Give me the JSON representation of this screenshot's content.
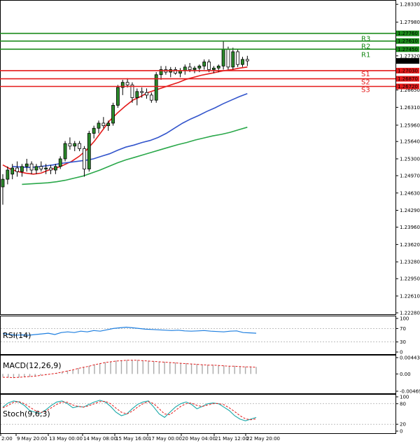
{
  "chart_data": {
    "type": "candlestick",
    "price_axis": {
      "range": [
        1.2228,
        1.2836
      ],
      "ticks": [
        "1.28330",
        "1.27980",
        "1.27320",
        "1.26650",
        "1.26310",
        "1.25960",
        "1.25640",
        "1.25300",
        "1.24970",
        "1.24630",
        "1.24290",
        "1.23960",
        "1.23620",
        "1.23280",
        "1.22950",
        "1.22610",
        "1.22280"
      ]
    },
    "time_axis": {
      "labels": [
        "2:00",
        "9 May 20:00",
        "13 May 00:00",
        "14 May 08:00",
        "15 May 16:00",
        "17 May 00:00",
        "20 May 04:00",
        "21 May 12:00",
        "22 May 20:00"
      ]
    },
    "current_price": {
      "label": "1.27220",
      "value": 1.2722
    },
    "levels": [
      {
        "name": "R3",
        "value": 1.2776,
        "tag": "1.27760",
        "color": "#1a8a1a"
      },
      {
        "name": "R2",
        "value": 1.2761,
        "tag": "1.27610",
        "color": "#1a8a1a"
      },
      {
        "name": "R1",
        "value": 1.2745,
        "tag": "1.27450",
        "color": "#1a8a1a"
      },
      {
        "name": "S1",
        "value": 1.2703,
        "tag": "1.27030",
        "color": "#e41a1a"
      },
      {
        "name": "S2",
        "value": 1.2687,
        "tag": "1.26870",
        "color": "#e41a1a"
      },
      {
        "name": "S3",
        "value": 1.2672,
        "tag": "1.26720",
        "color": "#e41a1a"
      }
    ],
    "candles": [
      [
        1.2475,
        1.25,
        1.244,
        1.249
      ],
      [
        1.249,
        1.2515,
        1.248,
        1.2508
      ],
      [
        1.25,
        1.252,
        1.249,
        1.2512
      ],
      [
        1.2512,
        1.2525,
        1.2495,
        1.2505
      ],
      [
        1.2505,
        1.252,
        1.2495,
        1.2515
      ],
      [
        1.2515,
        1.253,
        1.2505,
        1.252
      ],
      [
        1.252,
        1.2525,
        1.25,
        1.2508
      ],
      [
        1.2508,
        1.252,
        1.25,
        1.2515
      ],
      [
        1.2515,
        1.2525,
        1.2505,
        1.251
      ],
      [
        1.251,
        1.252,
        1.25,
        1.2512
      ],
      [
        1.2512,
        1.2518,
        1.25,
        1.2508
      ],
      [
        1.2508,
        1.252,
        1.25,
        1.2515
      ],
      [
        1.2515,
        1.2535,
        1.251,
        1.253
      ],
      [
        1.253,
        1.2565,
        1.2525,
        1.256
      ],
      [
        1.256,
        1.2572,
        1.2548,
        1.2555
      ],
      [
        1.2555,
        1.2565,
        1.2545,
        1.256
      ],
      [
        1.256,
        1.2565,
        1.2545,
        1.255
      ],
      [
        1.255,
        1.2555,
        1.2495,
        1.251
      ],
      [
        1.251,
        1.2585,
        1.2505,
        1.258
      ],
      [
        1.258,
        1.2595,
        1.257,
        1.259
      ],
      [
        1.259,
        1.2605,
        1.258,
        1.26
      ],
      [
        1.26,
        1.2612,
        1.259,
        1.2595
      ],
      [
        1.2595,
        1.2605,
        1.2585,
        1.26
      ],
      [
        1.26,
        1.264,
        1.2595,
        1.2635
      ],
      [
        1.2635,
        1.2675,
        1.263,
        1.267
      ],
      [
        1.267,
        1.2685,
        1.2655,
        1.268
      ],
      [
        1.268,
        1.2688,
        1.267,
        1.2675
      ],
      [
        1.2675,
        1.268,
        1.264,
        1.265
      ],
      [
        1.265,
        1.2668,
        1.2635,
        1.2662
      ],
      [
        1.2662,
        1.267,
        1.265,
        1.266
      ],
      [
        1.266,
        1.2668,
        1.2648,
        1.2655
      ],
      [
        1.2655,
        1.266,
        1.264,
        1.2645
      ],
      [
        1.2645,
        1.27,
        1.264,
        1.2695
      ],
      [
        1.2695,
        1.2712,
        1.2685,
        1.2705
      ],
      [
        1.2705,
        1.2712,
        1.2695,
        1.27
      ],
      [
        1.27,
        1.271,
        1.269,
        1.2705
      ],
      [
        1.2705,
        1.271,
        1.2695,
        1.2698
      ],
      [
        1.2698,
        1.2708,
        1.269,
        1.2703
      ],
      [
        1.2703,
        1.2715,
        1.2695,
        1.271
      ],
      [
        1.271,
        1.2718,
        1.27,
        1.2705
      ],
      [
        1.2705,
        1.2712,
        1.2698,
        1.2708
      ],
      [
        1.2708,
        1.2715,
        1.27,
        1.2712
      ],
      [
        1.2712,
        1.2725,
        1.2705,
        1.272
      ],
      [
        1.272,
        1.2725,
        1.27,
        1.2705
      ],
      [
        1.2705,
        1.2712,
        1.2698,
        1.2708
      ],
      [
        1.2708,
        1.2715,
        1.27,
        1.2712
      ],
      [
        1.2712,
        1.276,
        1.2705,
        1.2745
      ],
      [
        1.2745,
        1.275,
        1.2705,
        1.271
      ],
      [
        1.271,
        1.2748,
        1.2705,
        1.274
      ],
      [
        1.274,
        1.2745,
        1.271,
        1.2715
      ],
      [
        1.2715,
        1.273,
        1.271,
        1.2725
      ],
      [
        1.2725,
        1.2732,
        1.2712,
        1.2722
      ]
    ],
    "moving_averages": [
      {
        "color": "#e41a1a",
        "values": [
          1.2518,
          1.251,
          1.2505,
          1.2502,
          1.25,
          1.2502,
          1.2508,
          1.2512,
          1.2518,
          1.2525,
          1.2535,
          1.2548,
          1.2565,
          1.2585,
          1.2605,
          1.262,
          1.2633,
          1.2645,
          1.2652,
          1.266,
          1.2665,
          1.267,
          1.2675,
          1.268,
          1.2686,
          1.269,
          1.2694,
          1.2697,
          1.27,
          1.2703,
          1.2705,
          1.2708,
          1.271
        ]
      },
      {
        "color": "#3355cc",
        "values": [
          1.2515,
          1.2514,
          1.2513,
          1.2514,
          1.2516,
          1.2518,
          1.2521,
          1.2523,
          1.2525,
          1.2527,
          1.253,
          1.2535,
          1.254,
          1.2547,
          1.2553,
          1.2557,
          1.2562,
          1.2566,
          1.2572,
          1.258,
          1.259,
          1.26,
          1.2608,
          1.2615,
          1.2623,
          1.263,
          1.2638,
          1.2645,
          1.2652,
          1.2658
        ]
      },
      {
        "color": "#2aa84a",
        "values": [
          1.248,
          1.2481,
          1.2482,
          1.2483,
          1.2485,
          1.2488,
          1.2492,
          1.2496,
          1.2502,
          1.2508,
          1.2515,
          1.2522,
          1.2528,
          1.2533,
          1.2538,
          1.2543,
          1.2548,
          1.2553,
          1.2558,
          1.2562,
          1.2567,
          1.2571,
          1.2575,
          1.2578,
          1.2582,
          1.2587,
          1.2592
        ]
      }
    ],
    "indicators": [
      {
        "name": "RSI(14)",
        "ticks": [
          "100",
          "70",
          "30",
          "0"
        ],
        "range": [
          0,
          100
        ],
        "levels": [
          70,
          30
        ],
        "values": [
          55,
          52,
          50,
          51,
          50,
          52,
          54,
          56,
          52,
          58,
          60,
          58,
          62,
          60,
          64,
          62,
          66,
          70,
          72,
          74,
          72,
          70,
          68,
          67,
          66,
          65,
          64,
          65,
          63,
          62,
          63,
          64,
          62,
          61,
          60,
          62,
          63,
          58,
          57,
          56
        ]
      },
      {
        "name": "MACD(12,26,9)",
        "ticks": [
          "0.004431",
          "0.00",
          "-0.004691"
        ],
        "range": [
          -0.004691,
          0.004431
        ],
        "histogram": [
          -0.0008,
          -0.001,
          -0.0011,
          -0.001,
          -0.0009,
          -0.0008,
          -0.0006,
          -0.0004,
          -0.0002,
          0.0,
          0.0003,
          0.0006,
          0.0009,
          0.0012,
          0.0016,
          0.0019,
          0.0022,
          0.0026,
          0.0029,
          0.0032,
          0.0034,
          0.0036,
          0.0037,
          0.0038,
          0.0038,
          0.0038,
          0.0037,
          0.0036,
          0.0035,
          0.0034,
          0.0033,
          0.0032,
          0.0031,
          0.003,
          0.0029,
          0.0028,
          0.0027,
          0.0026,
          0.0025,
          0.0025,
          0.0024,
          0.0023,
          0.0022,
          0.0022,
          0.0021,
          0.002,
          0.002,
          0.0019
        ],
        "signal": [
          -0.0009,
          -0.0009,
          -0.001,
          -0.0009,
          -0.0008,
          -0.0007,
          -0.0006,
          -0.0004,
          -0.0002,
          0.0,
          0.0002,
          0.0005,
          0.0008,
          0.0011,
          0.0015,
          0.0018,
          0.0021,
          0.0025,
          0.0028,
          0.0031,
          0.0033,
          0.0035,
          0.0036,
          0.0037,
          0.0037,
          0.0037,
          0.0036,
          0.0035,
          0.0034,
          0.0033,
          0.0032,
          0.0031,
          0.003,
          0.0029,
          0.0028,
          0.0027,
          0.0026,
          0.0025,
          0.0024,
          0.0024,
          0.0023,
          0.0022,
          0.0021,
          0.0021,
          0.002,
          0.0019,
          0.0019,
          0.0018
        ]
      },
      {
        "name": "Stoch(9,6,3)",
        "ticks": [
          "100",
          "80",
          "20",
          "0"
        ],
        "range": [
          0,
          100
        ],
        "levels": [
          80,
          20
        ],
        "k": [
          70,
          82,
          88,
          85,
          75,
          60,
          55,
          52,
          62,
          75,
          85,
          88,
          80,
          68,
          72,
          70,
          78,
          85,
          90,
          85,
          72,
          55,
          45,
          50,
          65,
          78,
          85,
          88,
          70,
          50,
          40,
          55,
          70,
          80,
          85,
          78,
          65,
          72,
          80,
          82,
          80,
          70,
          60,
          45,
          35,
          30,
          35,
          40
        ],
        "d": [
          68,
          75,
          84,
          86,
          80,
          70,
          60,
          54,
          58,
          68,
          78,
          85,
          84,
          76,
          72,
          70,
          74,
          80,
          86,
          87,
          80,
          67,
          55,
          50,
          58,
          70,
          80,
          86,
          80,
          65,
          50,
          48,
          60,
          72,
          80,
          82,
          75,
          72,
          76,
          80,
          81,
          77,
          68,
          57,
          45,
          36,
          33,
          36
        ]
      }
    ]
  }
}
